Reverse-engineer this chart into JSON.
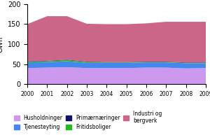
{
  "years": [
    2000,
    2001,
    2002,
    2003,
    2004,
    2005,
    2006,
    2007,
    2008,
    2009
  ],
  "husholdninger": [
    40,
    41,
    42,
    40,
    40,
    40,
    41,
    41,
    39,
    40
  ],
  "tjenesteyting": [
    14,
    14,
    15,
    13,
    13,
    13,
    13,
    13,
    13,
    12
  ],
  "fritidsboliger": [
    2,
    2,
    3,
    2,
    1,
    1,
    1,
    1,
    1,
    1
  ],
  "primaernaringer": [
    1,
    1,
    1,
    1,
    1,
    1,
    1,
    1,
    1,
    1
  ],
  "industri_og_bergverk": [
    93,
    112,
    109,
    95,
    95,
    95,
    96,
    100,
    102,
    102
  ],
  "colors": {
    "husholdninger": "#cc99ee",
    "tjenesteyting": "#4488ee",
    "fritidsboliger": "#22bb22",
    "primaernaringer": "#111166",
    "industri_og_bergverk": "#cc6688"
  },
  "ylabel": "GWh",
  "ylim": [
    0,
    200
  ],
  "yticks": [
    0,
    50,
    100,
    150,
    200
  ],
  "xlim": [
    2000,
    2009
  ],
  "background_color": "#ffffff"
}
